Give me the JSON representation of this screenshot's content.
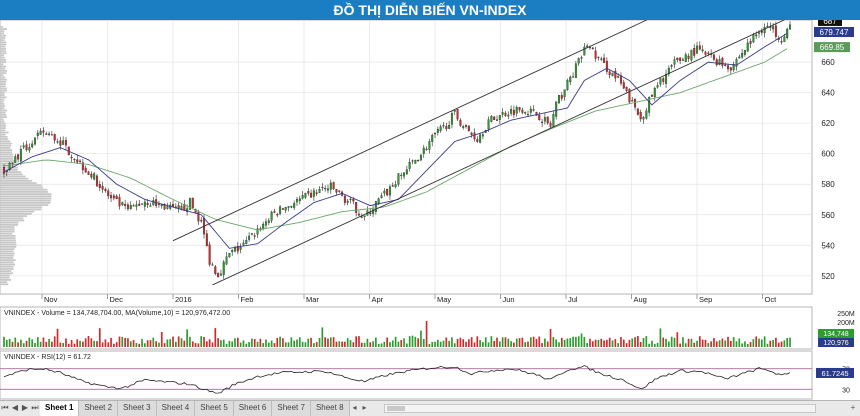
{
  "title": "ĐỒ THỊ DIỄN BIẾN VN-INDEX",
  "chart_data": [
    {
      "type": "candlestick",
      "months": [
        "Nov",
        "Dec",
        "2016",
        "Feb",
        "Mar",
        "Apr",
        "May",
        "Jun",
        "Jul",
        "Aug",
        "Sep",
        "Oct"
      ],
      "y_ticks": [
        520,
        540,
        560,
        580,
        600,
        620,
        640,
        660
      ],
      "ylim": [
        512,
        685
      ],
      "last_price": "687",
      "ma_label_1": "679.747",
      "ma_label_2": "669.85",
      "close_keypoints": [
        [
          0,
          590
        ],
        [
          8,
          604
        ],
        [
          14,
          614
        ],
        [
          20,
          608
        ],
        [
          26,
          596
        ],
        [
          32,
          584
        ],
        [
          38,
          570
        ],
        [
          44,
          563
        ],
        [
          50,
          569
        ],
        [
          56,
          566
        ],
        [
          62,
          562
        ],
        [
          66,
          568
        ],
        [
          70,
          555
        ],
        [
          73,
          530
        ],
        [
          76,
          521
        ],
        [
          80,
          534
        ],
        [
          85,
          540
        ],
        [
          90,
          550
        ],
        [
          96,
          561
        ],
        [
          102,
          567
        ],
        [
          108,
          572
        ],
        [
          112,
          576
        ],
        [
          116,
          578
        ],
        [
          120,
          572
        ],
        [
          124,
          566
        ],
        [
          128,
          558
        ],
        [
          132,
          567
        ],
        [
          136,
          575
        ],
        [
          140,
          584
        ],
        [
          144,
          592
        ],
        [
          148,
          600
        ],
        [
          152,
          610
        ],
        [
          156,
          617
        ],
        [
          160,
          626
        ],
        [
          164,
          616
        ],
        [
          168,
          610
        ],
        [
          172,
          621
        ],
        [
          178,
          627
        ],
        [
          184,
          630
        ],
        [
          190,
          625
        ],
        [
          194,
          618
        ],
        [
          196,
          632
        ],
        [
          200,
          646
        ],
        [
          204,
          660
        ],
        [
          207,
          672
        ],
        [
          210,
          664
        ],
        [
          214,
          656
        ],
        [
          218,
          648
        ],
        [
          222,
          636
        ],
        [
          226,
          623
        ],
        [
          230,
          638
        ],
        [
          234,
          650
        ],
        [
          238,
          659
        ],
        [
          242,
          664
        ],
        [
          246,
          668
        ],
        [
          250,
          664
        ],
        [
          254,
          660
        ],
        [
          258,
          657
        ],
        [
          262,
          666
        ],
        [
          266,
          676
        ],
        [
          270,
          684
        ],
        [
          273,
          681
        ],
        [
          276,
          676
        ],
        [
          279,
          684
        ]
      ],
      "ma_fast_keypoints": [
        [
          0,
          588
        ],
        [
          10,
          598
        ],
        [
          20,
          604
        ],
        [
          30,
          596
        ],
        [
          40,
          580
        ],
        [
          50,
          570
        ],
        [
          60,
          565
        ],
        [
          70,
          560
        ],
        [
          80,
          538
        ],
        [
          90,
          541
        ],
        [
          100,
          555
        ],
        [
          110,
          568
        ],
        [
          120,
          574
        ],
        [
          130,
          566
        ],
        [
          140,
          570
        ],
        [
          150,
          589
        ],
        [
          160,
          608
        ],
        [
          170,
          614
        ],
        [
          180,
          622
        ],
        [
          190,
          626
        ],
        [
          200,
          630
        ],
        [
          206,
          648
        ],
        [
          214,
          656
        ],
        [
          222,
          648
        ],
        [
          230,
          632
        ],
        [
          240,
          648
        ],
        [
          250,
          660
        ],
        [
          260,
          658
        ],
        [
          270,
          670
        ],
        [
          279,
          680
        ]
      ],
      "ma_slow_keypoints": [
        [
          0,
          592
        ],
        [
          15,
          596
        ],
        [
          30,
          593
        ],
        [
          45,
          584
        ],
        [
          60,
          570
        ],
        [
          75,
          557
        ],
        [
          90,
          550
        ],
        [
          105,
          555
        ],
        [
          120,
          562
        ],
        [
          135,
          565
        ],
        [
          150,
          575
        ],
        [
          165,
          590
        ],
        [
          180,
          605
        ],
        [
          195,
          617
        ],
        [
          210,
          628
        ],
        [
          225,
          634
        ],
        [
          240,
          640
        ],
        [
          255,
          650
        ],
        [
          270,
          660
        ],
        [
          279,
          670
        ]
      ],
      "channel_lines": [
        {
          "x1": 60,
          "y1": 543,
          "x2": 246,
          "y2": 703
        },
        {
          "x1": 74,
          "y1": 514,
          "x2": 282,
          "y2": 692
        }
      ]
    },
    {
      "type": "bar",
      "label": "VNINDEX - Volume = 134,748,704.00, MA(Volume,10) = 120,976,472.00",
      "y_ticks": [
        "250M",
        "200M"
      ],
      "last_value": "134,748",
      "ma_value": "120,976"
    },
    {
      "type": "line",
      "label": "VNINDEX - RSI(12) = 61.72",
      "y_ticks": [
        "70",
        "30"
      ],
      "last_value": "61.7245",
      "ylim": [
        15,
        85
      ],
      "rsi_keypoints": [
        [
          0,
          55
        ],
        [
          8,
          68
        ],
        [
          14,
          70
        ],
        [
          20,
          62
        ],
        [
          28,
          45
        ],
        [
          36,
          35
        ],
        [
          42,
          32
        ],
        [
          50,
          48
        ],
        [
          58,
          44
        ],
        [
          66,
          40
        ],
        [
          72,
          28
        ],
        [
          76,
          22
        ],
        [
          82,
          40
        ],
        [
          90,
          55
        ],
        [
          98,
          62
        ],
        [
          106,
          64
        ],
        [
          114,
          65
        ],
        [
          122,
          52
        ],
        [
          128,
          45
        ],
        [
          136,
          58
        ],
        [
          144,
          66
        ],
        [
          152,
          72
        ],
        [
          160,
          74
        ],
        [
          166,
          60
        ],
        [
          172,
          66
        ],
        [
          180,
          70
        ],
        [
          188,
          60
        ],
        [
          194,
          48
        ],
        [
          200,
          68
        ],
        [
          206,
          74
        ],
        [
          212,
          60
        ],
        [
          220,
          48
        ],
        [
          226,
          30
        ],
        [
          232,
          52
        ],
        [
          240,
          66
        ],
        [
          248,
          64
        ],
        [
          256,
          50
        ],
        [
          262,
          60
        ],
        [
          268,
          70
        ],
        [
          272,
          66
        ],
        [
          276,
          56
        ],
        [
          279,
          62
        ]
      ]
    }
  ],
  "tabs": [
    "Sheet 1",
    "Sheet 2",
    "Sheet 3",
    "Sheet 4",
    "Sheet 5",
    "Sheet 6",
    "Sheet 7",
    "Sheet 8"
  ],
  "colors": {
    "up": "#2e9b2e",
    "down": "#d12a2a",
    "ma_fast": "#3a3a8c",
    "ma_slow": "#6aa86a",
    "title_bg": "#1b7ec2"
  }
}
